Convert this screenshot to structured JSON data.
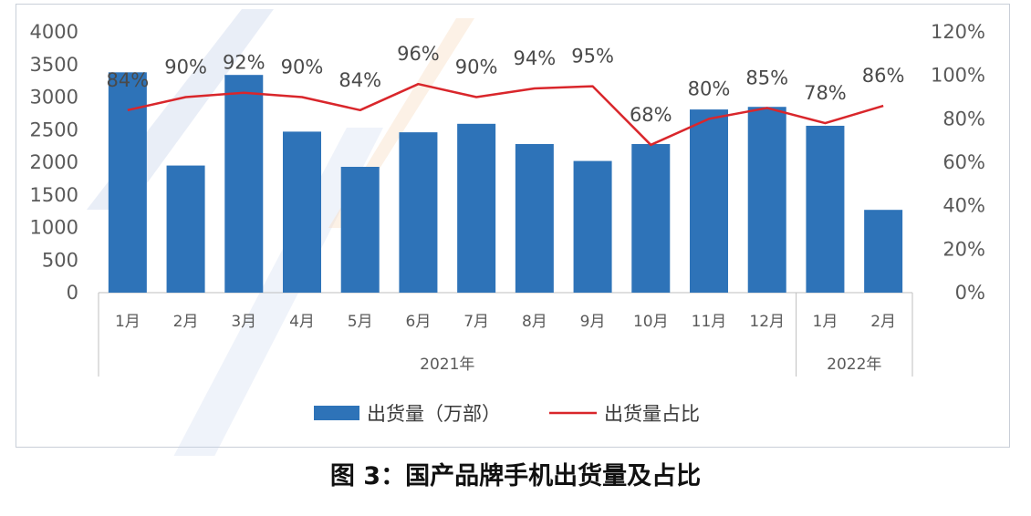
{
  "caption": "图 3：国产品牌手机出货量及占比",
  "chart_data": {
    "type": "bar+line",
    "categories": [
      "1月",
      "2月",
      "3月",
      "4月",
      "5月",
      "6月",
      "7月",
      "8月",
      "9月",
      "10月",
      "11月",
      "12月",
      "1月",
      "2月"
    ],
    "groups": [
      {
        "label": "2021年",
        "count": 12
      },
      {
        "label": "2022年",
        "count": 2
      }
    ],
    "series": [
      {
        "name": "出货量（万部）",
        "type": "bar",
        "axis": "left",
        "color": "#2e73b8",
        "values": [
          3380,
          1950,
          3340,
          2470,
          1930,
          2460,
          2590,
          2280,
          2020,
          2280,
          2810,
          2850,
          2560,
          1270
        ]
      },
      {
        "name": "出货量占比",
        "type": "line",
        "axis": "right",
        "color": "#d9262b",
        "values": [
          84,
          90,
          92,
          90,
          84,
          96,
          90,
          94,
          95,
          68,
          80,
          85,
          78,
          86
        ],
        "labels": [
          "84%",
          "90%",
          "92%",
          "90%",
          "84%",
          "96%",
          "90%",
          "94%",
          "95%",
          "68%",
          "80%",
          "85%",
          "78%",
          "86%"
        ]
      }
    ],
    "y_left": {
      "min": 0,
      "max": 4000,
      "ticks": [
        "0",
        "500",
        "1000",
        "1500",
        "2000",
        "2500",
        "3000",
        "3500",
        "4000"
      ]
    },
    "y_right": {
      "min": 0,
      "max": 120,
      "ticks": [
        "0%",
        "20%",
        "40%",
        "60%",
        "80%",
        "100%",
        "120%"
      ]
    },
    "grid": false,
    "legend_position": "bottom"
  }
}
